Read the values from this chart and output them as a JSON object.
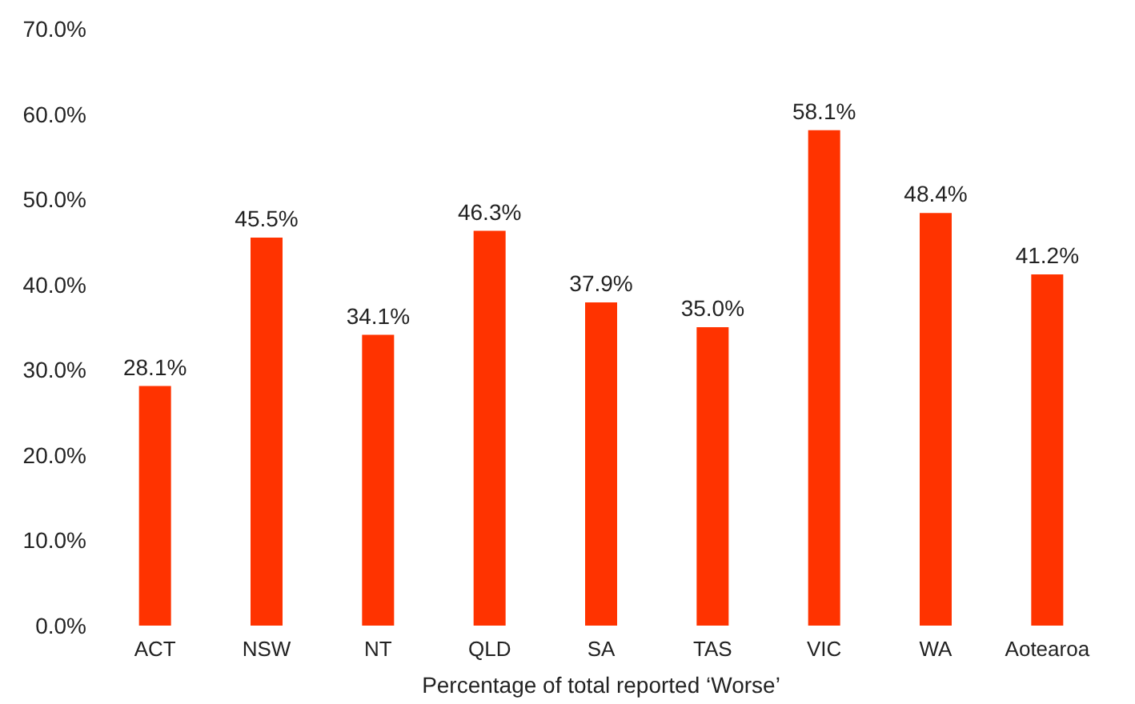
{
  "chart_data": {
    "type": "bar",
    "xlabel": "Percentage of total reported ‘Worse’",
    "categories": [
      "ACT",
      "NSW",
      "NT",
      "QLD",
      "SA",
      "TAS",
      "VIC",
      "WA",
      "Aotearoa"
    ],
    "values": [
      28.1,
      45.5,
      34.1,
      46.3,
      37.9,
      35.0,
      58.1,
      48.4,
      41.2
    ],
    "value_labels": [
      "28.1%",
      "45.5%",
      "34.1%",
      "46.3%",
      "37.9%",
      "35.0%",
      "58.1%",
      "48.4%",
      "41.2%"
    ],
    "color": "#ff3300",
    "ylim": [
      0,
      70
    ],
    "yticks": [
      {
        "value": 0,
        "label": "0.0%"
      },
      {
        "value": 10,
        "label": "10.0%"
      },
      {
        "value": 20,
        "label": "20.0%"
      },
      {
        "value": 30,
        "label": "30.0%"
      },
      {
        "value": 40,
        "label": "40.0%"
      },
      {
        "value": 50,
        "label": "50.0%"
      },
      {
        "value": 60,
        "label": "60.0%"
      },
      {
        "value": 70,
        "label": "70.0%"
      }
    ],
    "grid": false
  }
}
